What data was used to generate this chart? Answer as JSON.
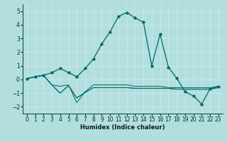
{
  "xlabel": "Humidex (Indice chaleur)",
  "background_color": "#b2dede",
  "grid_color": "#c8ecec",
  "line_color": "#006868",
  "xlim": [
    -0.5,
    23.5
  ],
  "ylim": [
    -2.5,
    5.5
  ],
  "xticks": [
    0,
    1,
    2,
    3,
    4,
    5,
    6,
    7,
    8,
    9,
    10,
    11,
    12,
    13,
    14,
    15,
    16,
    17,
    18,
    19,
    20,
    21,
    22,
    23
  ],
  "yticks": [
    -2,
    -1,
    0,
    1,
    2,
    3,
    4,
    5
  ],
  "main_series": [
    0.05,
    0.2,
    0.3,
    0.5,
    0.8,
    0.5,
    0.2,
    0.8,
    1.5,
    2.6,
    3.5,
    4.6,
    4.9,
    4.5,
    4.2,
    1.0,
    3.3,
    0.9,
    0.1,
    -0.9,
    -1.2,
    -1.8,
    -0.7,
    -0.5
  ],
  "flat1": [
    0.05,
    0.2,
    0.3,
    -0.4,
    -0.5,
    -0.4,
    -1.7,
    -0.9,
    -0.4,
    -0.4,
    -0.4,
    -0.4,
    -0.4,
    -0.5,
    -0.5,
    -0.5,
    -0.5,
    -0.6,
    -0.6,
    -0.6,
    -0.6,
    -0.6,
    -0.6,
    -0.5
  ],
  "flat2": [
    0.05,
    0.2,
    0.3,
    -0.4,
    -1.0,
    -0.45,
    -1.35,
    -0.95,
    -0.6,
    -0.6,
    -0.6,
    -0.6,
    -0.6,
    -0.65,
    -0.65,
    -0.65,
    -0.65,
    -0.65,
    -0.7,
    -0.7,
    -0.7,
    -0.7,
    -0.7,
    -0.6
  ],
  "flat3": [
    0.05,
    0.2,
    0.3,
    -0.4,
    -1.0,
    -0.45,
    -1.35,
    -0.95,
    -0.6,
    -0.6,
    -0.6,
    -0.6,
    -0.6,
    -0.65,
    -0.65,
    -0.65,
    -0.65,
    -0.65,
    -0.72,
    -0.72,
    -0.72,
    -0.72,
    -0.72,
    -0.6
  ]
}
